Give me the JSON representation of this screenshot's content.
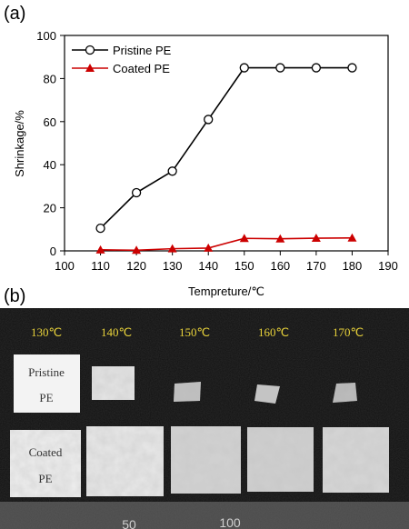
{
  "panels": {
    "a_label": "(a)",
    "b_label": "(b)"
  },
  "chart_data": {
    "type": "line",
    "xlabel": "Tempreture/℃",
    "ylabel": "Shrinkage/%",
    "xlim": [
      100,
      190
    ],
    "ylim": [
      0,
      100
    ],
    "xticks": [
      100,
      110,
      120,
      130,
      140,
      150,
      160,
      170,
      180,
      190
    ],
    "yticks": [
      0,
      20,
      40,
      60,
      80,
      100
    ],
    "grid": false,
    "legend_position": "top-left",
    "series": [
      {
        "name": "Pristine PE",
        "marker": "open-circle",
        "color": "#000000",
        "x": [
          110,
          120,
          130,
          140,
          150,
          160,
          170,
          180
        ],
        "y": [
          10.5,
          27,
          37,
          61,
          85,
          85,
          85,
          85
        ]
      },
      {
        "name": "Coated PE",
        "marker": "filled-triangle",
        "color": "#cc0000",
        "x": [
          110,
          120,
          130,
          140,
          150,
          160,
          170,
          180
        ],
        "y": [
          0.5,
          0.3,
          1.0,
          1.3,
          5.8,
          5.6,
          5.9,
          6.0
        ]
      }
    ]
  },
  "photo": {
    "temperatures": [
      "130℃",
      "140℃",
      "150℃",
      "160℃",
      "170℃"
    ],
    "rows": [
      {
        "line1": "Pristine",
        "line2": "PE"
      },
      {
        "line1": "Coated",
        "line2": "PE"
      }
    ],
    "ruler": {
      "marks": [
        "50",
        "100"
      ]
    }
  }
}
